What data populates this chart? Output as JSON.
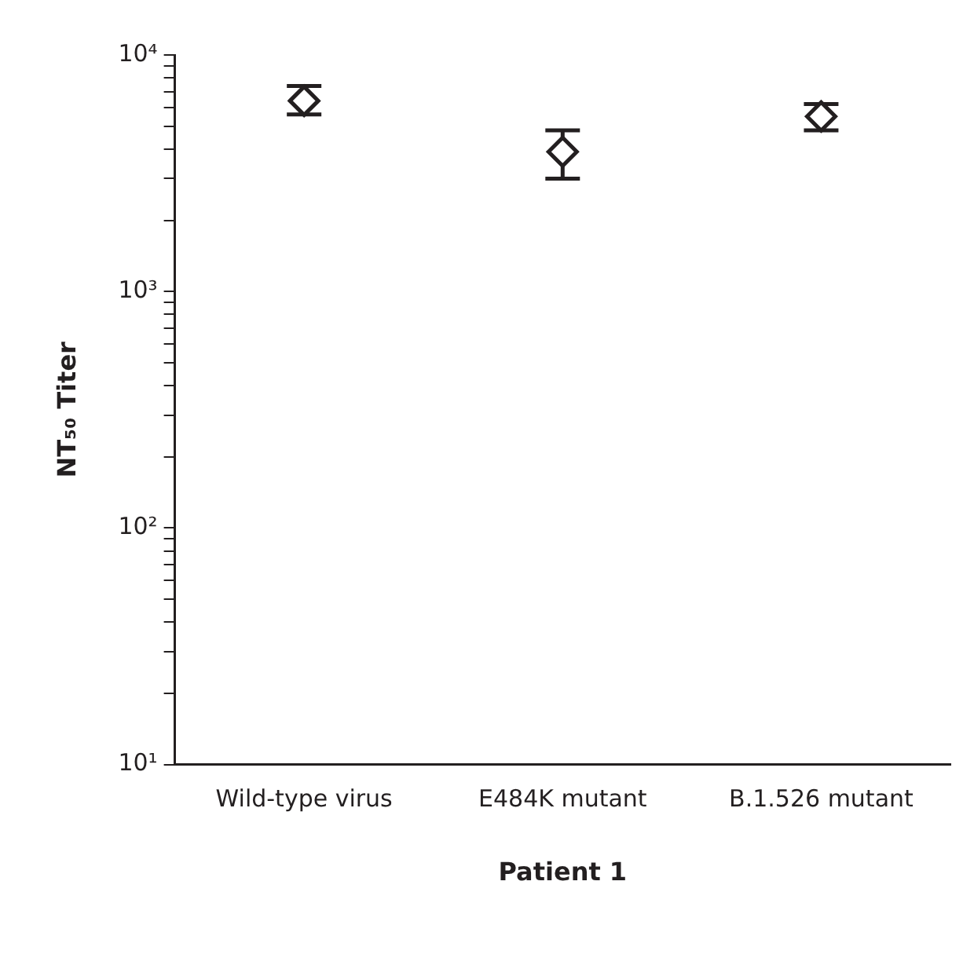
{
  "chart_data": {
    "type": "scatter",
    "xlabel": "Patient 1",
    "ylabel": "NT₅₀ Titer",
    "categories": [
      "Wild-type virus",
      "E484K mutant",
      "B.1.526 mutant"
    ],
    "values": [
      6400,
      3900,
      5500
    ],
    "errors": [
      [
        5600,
        7400
      ],
      [
        3000,
        4800
      ],
      [
        4800,
        6200
      ]
    ],
    "color": "#231f20",
    "marker": "diamond",
    "log": "y",
    "grid": false,
    "legend": false,
    "ylim": [
      10,
      10000
    ],
    "yticks": [
      {
        "value": 10,
        "label": "10¹"
      },
      {
        "value": 20,
        "label": null
      },
      {
        "value": 30,
        "label": null
      },
      {
        "value": 40,
        "label": null
      },
      {
        "value": 50,
        "label": null
      },
      {
        "value": 60,
        "label": null
      },
      {
        "value": 70,
        "label": null
      },
      {
        "value": 80,
        "label": null
      },
      {
        "value": 90,
        "label": null
      },
      {
        "value": 100,
        "label": "10²"
      },
      {
        "value": 200,
        "label": null
      },
      {
        "value": 300,
        "label": null
      },
      {
        "value": 400,
        "label": null
      },
      {
        "value": 500,
        "label": null
      },
      {
        "value": 600,
        "label": null
      },
      {
        "value": 700,
        "label": null
      },
      {
        "value": 800,
        "label": null
      },
      {
        "value": 900,
        "label": null
      },
      {
        "value": 1000,
        "label": "10³"
      },
      {
        "value": 2000,
        "label": null
      },
      {
        "value": 3000,
        "label": null
      },
      {
        "value": 4000,
        "label": null
      },
      {
        "value": 5000,
        "label": null
      },
      {
        "value": 6000,
        "label": null
      },
      {
        "value": 7000,
        "label": null
      },
      {
        "value": 8000,
        "label": null
      },
      {
        "value": 9000,
        "label": null
      },
      {
        "value": 10000,
        "label": "10⁴"
      }
    ]
  }
}
